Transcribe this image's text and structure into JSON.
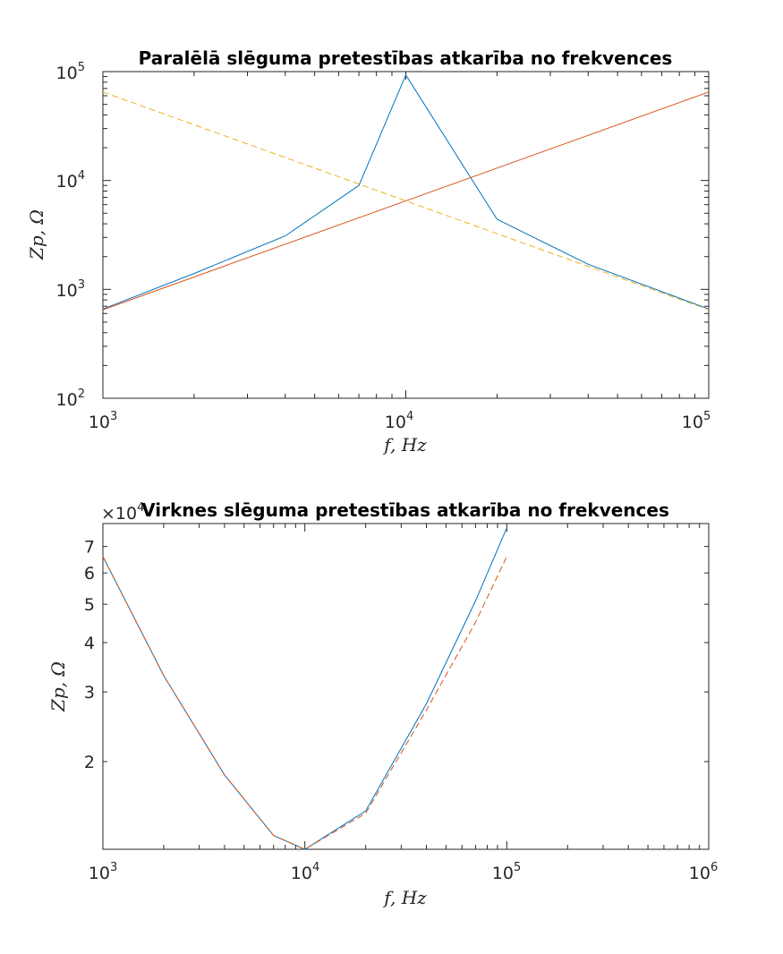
{
  "chart_data": [
    {
      "type": "line",
      "title": "Paralēlā slēguma pretestības atkarība no frekvences",
      "xlabel": "f, Hz",
      "ylabel": "Zp, Ω",
      "xscale": "log",
      "yscale": "log",
      "xlim": [
        1000,
        100000
      ],
      "ylim": [
        100,
        100000
      ],
      "xticks": [
        {
          "base": "10",
          "exp": "3"
        },
        {
          "base": "10",
          "exp": "4"
        },
        {
          "base": "10",
          "exp": "5"
        }
      ],
      "yticks": [
        {
          "base": "10",
          "exp": "2"
        },
        {
          "base": "10",
          "exp": "3"
        },
        {
          "base": "10",
          "exp": "4"
        },
        {
          "base": "10",
          "exp": "5"
        }
      ],
      "grid": false,
      "series": [
        {
          "color": "#0072bd",
          "style": "solid",
          "x": [
            1000,
            2000,
            4000,
            7000,
            10000,
            20000,
            40000,
            100000
          ],
          "y": [
            660,
            1400,
            3100,
            9000,
            93000,
            4400,
            1700,
            660
          ]
        },
        {
          "color": "#d95319",
          "style": "solid",
          "x": [
            1000,
            100000
          ],
          "y": [
            650,
            65000
          ]
        },
        {
          "color": "#edb120",
          "style": "dashed",
          "x": [
            1000,
            100000
          ],
          "y": [
            65000,
            650
          ]
        }
      ]
    },
    {
      "type": "line",
      "title": "Virknes slēguma pretestības atkarība no frekvences",
      "xlabel": "f, Hz",
      "ylabel": "Zp, Ω",
      "xscale": "log",
      "yscale": "log",
      "xlim": [
        1000,
        1000000
      ],
      "ylim": [
        1.2,
        8
      ],
      "y_multiplier": {
        "base": "×10",
        "exp": "4"
      },
      "xticks": [
        {
          "base": "10",
          "exp": "3"
        },
        {
          "base": "10",
          "exp": "4"
        },
        {
          "base": "10",
          "exp": "5"
        },
        {
          "base": "10",
          "exp": "6"
        }
      ],
      "yticks": [
        "2",
        "3",
        "4",
        "5",
        "6",
        "7"
      ],
      "grid": false,
      "series": [
        {
          "color": "#0072bd",
          "style": "solid",
          "x": [
            1000,
            2000,
            4000,
            7000,
            10000,
            20000,
            40000,
            70000,
            100000
          ],
          "y": [
            6.6,
            3.3,
            1.85,
            1.3,
            1.2,
            1.5,
            2.8,
            5.1,
            7.8
          ]
        },
        {
          "color": "#d95319",
          "style": "dashed",
          "x": [
            1000,
            2000,
            4000,
            7000,
            10000,
            20000,
            40000,
            70000,
            100000
          ],
          "y": [
            6.6,
            3.3,
            1.85,
            1.3,
            1.2,
            1.48,
            2.7,
            4.5,
            6.6
          ]
        }
      ]
    }
  ]
}
